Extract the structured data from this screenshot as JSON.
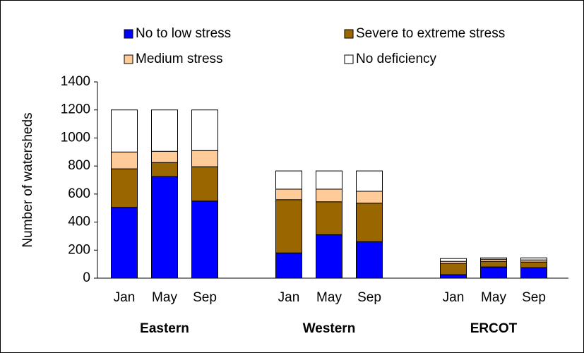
{
  "chart_data": {
    "type": "stacked_bar",
    "y_label": "Number of watersheds",
    "categories": [
      "Jan",
      "May",
      "Sep",
      "Jan",
      "May",
      "Sep",
      "Jan",
      "May",
      "Sep"
    ],
    "groups": [
      "Eastern",
      "Western",
      "ERCOT"
    ],
    "series": [
      {
        "name": "No to low stress",
        "color": "#0000ff",
        "values": [
          505,
          725,
          550,
          180,
          310,
          260,
          25,
          80,
          75
        ]
      },
      {
        "name": "Severe to extreme stress",
        "color": "#996600",
        "values": [
          275,
          100,
          245,
          380,
          235,
          275,
          80,
          40,
          40
        ]
      },
      {
        "name": "Medium stress",
        "color": "#ffcc99",
        "values": [
          120,
          80,
          115,
          75,
          90,
          85,
          15,
          15,
          15
        ]
      },
      {
        "name": "No deficiency",
        "color": "#ffffff",
        "values": [
          300,
          295,
          290,
          130,
          130,
          145,
          20,
          10,
          15
        ]
      }
    ],
    "ylim": [
      0,
      1400
    ],
    "yticks": [
      0,
      200,
      400,
      600,
      800,
      1000,
      1200,
      1400
    ],
    "grid": false
  }
}
